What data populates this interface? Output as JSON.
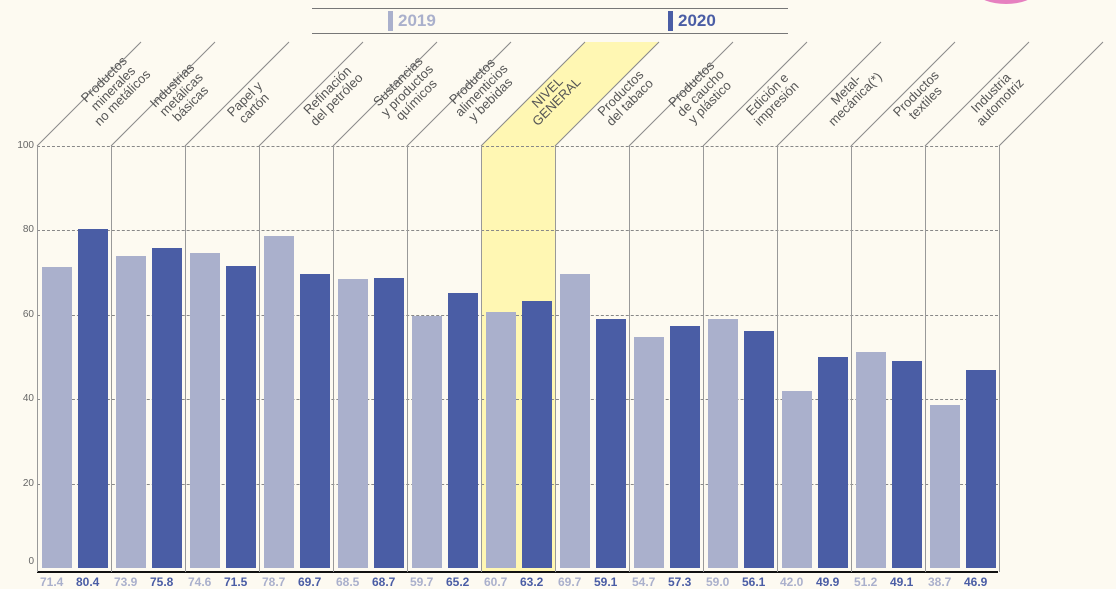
{
  "legend": {
    "y2019": "2019",
    "y2020": "2020"
  },
  "colors": {
    "y2019": "#aab0cc",
    "y2020": "#4a5da5",
    "highlight": "#fff7b3"
  },
  "chart_data": {
    "type": "bar",
    "title": "",
    "xlabel": "",
    "ylabel": "",
    "ylim": [
      0,
      100
    ],
    "yticks": [
      "0",
      "20",
      "40",
      "60",
      "80",
      "100"
    ],
    "grid": true,
    "legend_position": "top",
    "highlight_category": "NIVEL GENERAL",
    "categories": [
      "Productos minerales no metálicos",
      "Industrias metálicas básicas",
      "Papel y cartón",
      "Refinación del petróleo",
      "Sustancias y productos químicos",
      "Productos alimenticios y bebidas",
      "NIVEL GENERAL",
      "Productos del tabaco",
      "Productos de caucho y plástico",
      "Edición e impresión",
      "Metal- mecánica(*)",
      "Productos textiles",
      "Industria automotriz"
    ],
    "category_lines": [
      [
        "Productos",
        "minerales",
        "no metálicos"
      ],
      [
        "Industrias",
        "metálicas",
        "básicas"
      ],
      [
        "Papel y",
        "cartón"
      ],
      [
        "Refinación",
        "del petróleo"
      ],
      [
        "Sustancias",
        "y productos",
        "químicos"
      ],
      [
        "Productos",
        "alimenticios",
        "y bebidas"
      ],
      [
        "NIVEL",
        "GENERAL"
      ],
      [
        "Productos",
        "del tabaco"
      ],
      [
        "Productos",
        "de caucho",
        "y plástico"
      ],
      [
        "Edición e",
        "impresión"
      ],
      [
        "Metal-",
        "mecánica(*)"
      ],
      [
        "Productos",
        "textiles"
      ],
      [
        "Industria",
        "automotriz"
      ]
    ],
    "series": [
      {
        "name": "2019",
        "values": [
          71.4,
          73.9,
          74.6,
          78.7,
          68.5,
          59.7,
          60.7,
          69.7,
          54.7,
          59.0,
          42.0,
          51.2,
          38.7
        ]
      },
      {
        "name": "2020",
        "values": [
          80.4,
          75.8,
          71.5,
          69.7,
          68.7,
          65.2,
          63.2,
          59.1,
          57.3,
          56.1,
          49.9,
          49.1,
          46.9
        ]
      }
    ]
  }
}
